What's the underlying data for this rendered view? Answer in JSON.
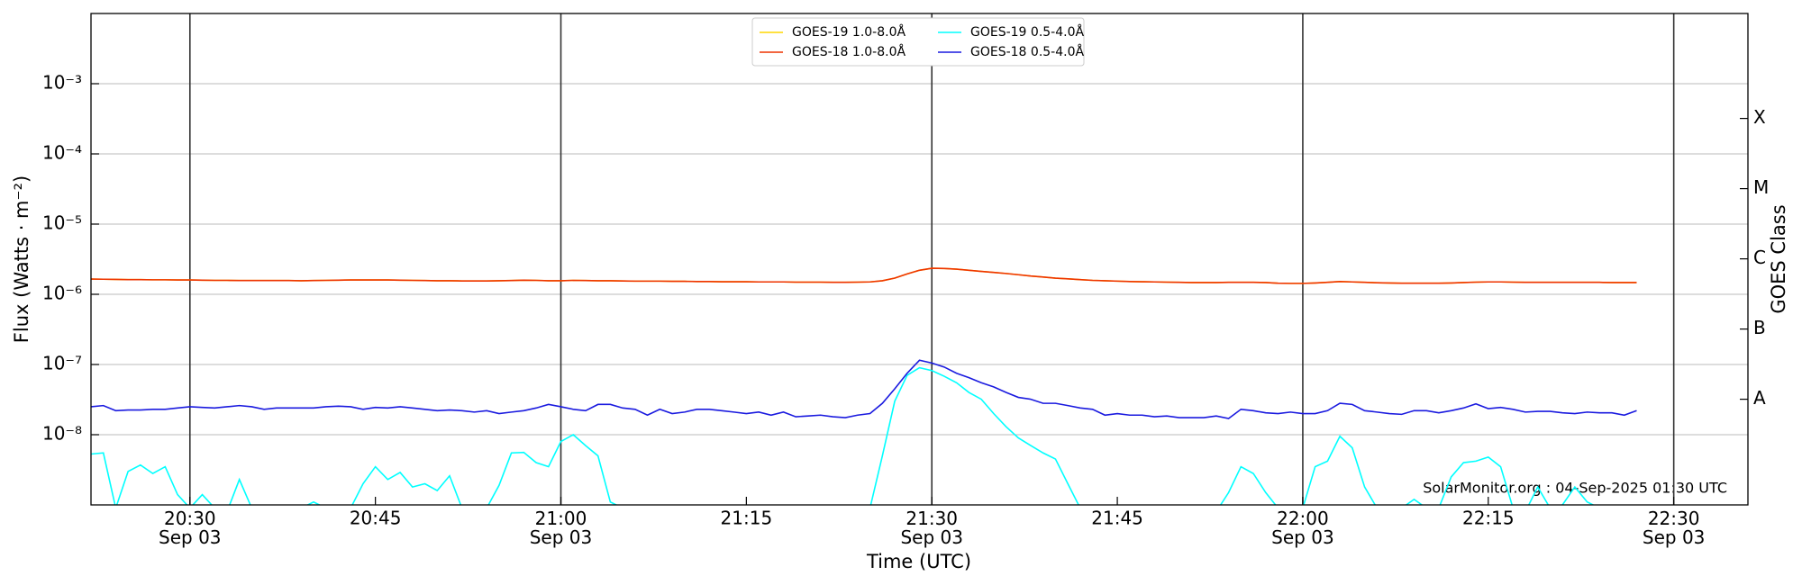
{
  "chart_data": {
    "type": "line",
    "x_label": "Time (UTC)",
    "y_label": "Flux (Watts · m⁻²)",
    "y2_label": "GOES Class",
    "annotation": "SolarMonitor.org : 04-Sep-2025 01:30 UTC",
    "log_scale": true,
    "grid": true,
    "legend_position": "top",
    "xlim": [
      "20:22",
      "22:36"
    ],
    "xticks": [
      {
        "value": "20:30",
        "label": "20:30\nSep 03"
      },
      "20:45",
      {
        "value": "21:00",
        "label": "21:00\nSep 03"
      },
      "21:15",
      {
        "value": "21:30",
        "label": "21:30\nSep 03"
      },
      "21:45",
      {
        "value": "22:00",
        "label": "22:00\nSep 03"
      },
      "22:15",
      {
        "value": "22:30",
        "label": "22:30\nSep 03"
      }
    ],
    "vlines": [
      "20:30",
      "21:00",
      "21:30",
      "22:00",
      "22:30"
    ],
    "ylim": [
      1e-09,
      0.01
    ],
    "yticks": [
      {
        "value": 1e-08,
        "label": "10⁻⁸"
      },
      {
        "value": 1e-07,
        "label": "10⁻⁷"
      },
      {
        "value": 1e-06,
        "label": "10⁻⁶"
      },
      {
        "value": 1e-05,
        "label": "10⁻⁵"
      },
      {
        "value": 0.0001,
        "label": "10⁻⁴"
      },
      {
        "value": 0.001,
        "label": "10⁻³"
      }
    ],
    "y2lim": [
      1e-09,
      0.01
    ],
    "y2ticks": [
      {
        "value": 3.2e-08,
        "label": "A"
      },
      {
        "value": 3.2e-07,
        "label": "B"
      },
      {
        "value": 3.2e-06,
        "label": "C"
      },
      {
        "value": 3.2e-05,
        "label": "M"
      },
      {
        "value": 0.00032,
        "label": "X"
      }
    ],
    "x": [
      "20:22",
      "20:23",
      "20:24",
      "20:25",
      "20:26",
      "20:27",
      "20:28",
      "20:29",
      "20:30",
      "20:31",
      "20:32",
      "20:33",
      "20:34",
      "20:35",
      "20:36",
      "20:37",
      "20:38",
      "20:39",
      "20:40",
      "20:41",
      "20:42",
      "20:43",
      "20:44",
      "20:45",
      "20:46",
      "20:47",
      "20:48",
      "20:49",
      "20:50",
      "20:51",
      "20:52",
      "20:53",
      "20:54",
      "20:55",
      "20:56",
      "20:57",
      "20:58",
      "20:59",
      "21:00",
      "21:01",
      "21:02",
      "21:03",
      "21:04",
      "21:05",
      "21:06",
      "21:07",
      "21:08",
      "21:09",
      "21:10",
      "21:11",
      "21:12",
      "21:13",
      "21:14",
      "21:15",
      "21:16",
      "21:17",
      "21:18",
      "21:19",
      "21:20",
      "21:21",
      "21:22",
      "21:23",
      "21:24",
      "21:25",
      "21:26",
      "21:27",
      "21:28",
      "21:29",
      "21:30",
      "21:31",
      "21:32",
      "21:33",
      "21:34",
      "21:35",
      "21:36",
      "21:37",
      "21:38",
      "21:39",
      "21:40",
      "21:41",
      "21:42",
      "21:43",
      "21:44",
      "21:45",
      "21:46",
      "21:47",
      "21:48",
      "21:49",
      "21:50",
      "21:51",
      "21:52",
      "21:53",
      "21:54",
      "21:55",
      "21:56",
      "21:57",
      "21:58",
      "21:59",
      "22:00",
      "22:01",
      "22:02",
      "22:03",
      "22:04",
      "22:05",
      "22:06",
      "22:07",
      "22:08",
      "22:09",
      "22:10",
      "22:11",
      "22:12",
      "22:13",
      "22:14",
      "22:15",
      "22:16",
      "22:17",
      "22:18",
      "22:19",
      "22:20",
      "22:21",
      "22:22",
      "22:23",
      "22:24",
      "22:25",
      "22:26",
      "22:27"
    ],
    "series": [
      {
        "name": "GOES-19 1.0-8.0Å",
        "color": "#ffd700",
        "values": [
          1.65e-06,
          1.64e-06,
          1.63e-06,
          1.62e-06,
          1.62e-06,
          1.61e-06,
          1.61e-06,
          1.6e-06,
          1.6e-06,
          1.59e-06,
          1.58e-06,
          1.58e-06,
          1.57e-06,
          1.57e-06,
          1.57e-06,
          1.57e-06,
          1.57e-06,
          1.56e-06,
          1.57e-06,
          1.58e-06,
          1.59e-06,
          1.6e-06,
          1.6e-06,
          1.6e-06,
          1.6e-06,
          1.59e-06,
          1.58e-06,
          1.57e-06,
          1.56e-06,
          1.56e-06,
          1.55e-06,
          1.55e-06,
          1.55e-06,
          1.56e-06,
          1.57e-06,
          1.59e-06,
          1.58e-06,
          1.56e-06,
          1.56e-06,
          1.58e-06,
          1.57e-06,
          1.56e-06,
          1.56e-06,
          1.55e-06,
          1.54e-06,
          1.54e-06,
          1.54e-06,
          1.53e-06,
          1.53e-06,
          1.52e-06,
          1.52e-06,
          1.51e-06,
          1.51e-06,
          1.51e-06,
          1.5e-06,
          1.5e-06,
          1.5e-06,
          1.49e-06,
          1.49e-06,
          1.49e-06,
          1.48e-06,
          1.48e-06,
          1.49e-06,
          1.5e-06,
          1.56e-06,
          1.7e-06,
          1.95e-06,
          2.2e-06,
          2.35e-06,
          2.33e-06,
          2.28e-06,
          2.2e-06,
          2.12e-06,
          2.05e-06,
          1.98e-06,
          1.9e-06,
          1.82e-06,
          1.76e-06,
          1.7e-06,
          1.66e-06,
          1.62e-06,
          1.58e-06,
          1.56e-06,
          1.54e-06,
          1.52e-06,
          1.51e-06,
          1.5e-06,
          1.49e-06,
          1.48e-06,
          1.47e-06,
          1.47e-06,
          1.47e-06,
          1.48e-06,
          1.48e-06,
          1.48e-06,
          1.47e-06,
          1.44e-06,
          1.43e-06,
          1.43e-06,
          1.45e-06,
          1.48e-06,
          1.52e-06,
          1.5e-06,
          1.48e-06,
          1.46e-06,
          1.45e-06,
          1.44e-06,
          1.44e-06,
          1.44e-06,
          1.44e-06,
          1.45e-06,
          1.47e-06,
          1.49e-06,
          1.5e-06,
          1.5e-06,
          1.49e-06,
          1.48e-06,
          1.48e-06,
          1.48e-06,
          1.48e-06,
          1.48e-06,
          1.48e-06,
          1.48e-06,
          1.47e-06,
          1.47e-06,
          1.47e-06
        ]
      },
      {
        "name": "GOES-18 1.0-8.0Å",
        "color": "#ee3300",
        "values": [
          1.65e-06,
          1.64e-06,
          1.63e-06,
          1.62e-06,
          1.62e-06,
          1.61e-06,
          1.61e-06,
          1.6e-06,
          1.6e-06,
          1.59e-06,
          1.58e-06,
          1.58e-06,
          1.57e-06,
          1.57e-06,
          1.57e-06,
          1.57e-06,
          1.57e-06,
          1.56e-06,
          1.57e-06,
          1.58e-06,
          1.59e-06,
          1.6e-06,
          1.6e-06,
          1.6e-06,
          1.6e-06,
          1.59e-06,
          1.58e-06,
          1.57e-06,
          1.56e-06,
          1.56e-06,
          1.55e-06,
          1.55e-06,
          1.55e-06,
          1.56e-06,
          1.57e-06,
          1.59e-06,
          1.58e-06,
          1.56e-06,
          1.56e-06,
          1.58e-06,
          1.57e-06,
          1.56e-06,
          1.56e-06,
          1.55e-06,
          1.54e-06,
          1.54e-06,
          1.54e-06,
          1.53e-06,
          1.53e-06,
          1.52e-06,
          1.52e-06,
          1.51e-06,
          1.51e-06,
          1.51e-06,
          1.5e-06,
          1.5e-06,
          1.5e-06,
          1.49e-06,
          1.49e-06,
          1.49e-06,
          1.48e-06,
          1.48e-06,
          1.49e-06,
          1.5e-06,
          1.56e-06,
          1.7e-06,
          1.95e-06,
          2.2e-06,
          2.35e-06,
          2.33e-06,
          2.28e-06,
          2.2e-06,
          2.12e-06,
          2.05e-06,
          1.98e-06,
          1.9e-06,
          1.82e-06,
          1.76e-06,
          1.7e-06,
          1.66e-06,
          1.62e-06,
          1.58e-06,
          1.56e-06,
          1.54e-06,
          1.52e-06,
          1.51e-06,
          1.5e-06,
          1.49e-06,
          1.48e-06,
          1.47e-06,
          1.47e-06,
          1.47e-06,
          1.48e-06,
          1.48e-06,
          1.48e-06,
          1.47e-06,
          1.44e-06,
          1.43e-06,
          1.43e-06,
          1.45e-06,
          1.48e-06,
          1.52e-06,
          1.5e-06,
          1.48e-06,
          1.46e-06,
          1.45e-06,
          1.44e-06,
          1.44e-06,
          1.44e-06,
          1.44e-06,
          1.45e-06,
          1.47e-06,
          1.49e-06,
          1.5e-06,
          1.5e-06,
          1.49e-06,
          1.48e-06,
          1.48e-06,
          1.48e-06,
          1.48e-06,
          1.48e-06,
          1.48e-06,
          1.48e-06,
          1.47e-06,
          1.47e-06,
          1.47e-06
        ]
      },
      {
        "name": "GOES-19 0.5-4.0Å",
        "color": "#00ffff",
        "values": [
          5.3e-09,
          5.5e-09,
          9e-10,
          3e-09,
          3.7e-09,
          2.8e-09,
          3.5e-09,
          1.4e-09,
          9e-10,
          1.4e-09,
          9e-10,
          8e-10,
          2.3e-09,
          9e-10,
          8e-10,
          8e-10,
          9e-10,
          9e-10,
          1.1e-09,
          9e-10,
          9e-10,
          9e-10,
          2e-09,
          3.5e-09,
          2.3e-09,
          2.9e-09,
          1.8e-09,
          2e-09,
          1.6e-09,
          2.6e-09,
          9e-10,
          8e-10,
          9e-10,
          1.9e-09,
          5.5e-09,
          5.6e-09,
          4e-09,
          3.5e-09,
          8e-09,
          1e-08,
          7e-09,
          5e-09,
          1.1e-09,
          9e-10,
          9e-10,
          8e-10,
          8e-10,
          8e-10,
          8e-10,
          8e-10,
          8e-10,
          8e-10,
          8e-10,
          8e-10,
          8e-10,
          8e-10,
          8e-10,
          8e-10,
          8e-10,
          8e-10,
          8e-10,
          8e-10,
          8e-10,
          9e-10,
          5e-09,
          3e-08,
          7e-08,
          9e-08,
          8.2e-08,
          6.8e-08,
          5.5e-08,
          4e-08,
          3.2e-08,
          2e-08,
          1.3e-08,
          9e-09,
          7e-09,
          5.5e-09,
          4.5e-09,
          2e-09,
          9e-10,
          8e-10,
          8e-10,
          8e-10,
          8e-10,
          8e-10,
          8e-10,
          8e-10,
          8e-10,
          8e-10,
          8e-10,
          8e-10,
          1.5e-09,
          3.5e-09,
          2.8e-09,
          1.5e-09,
          9e-10,
          8e-10,
          9e-10,
          3.5e-09,
          4.2e-09,
          9.5e-09,
          6.5e-09,
          1.8e-09,
          9e-10,
          8e-10,
          9e-10,
          1.2e-09,
          9e-10,
          9e-10,
          2.5e-09,
          4e-09,
          4.2e-09,
          4.8e-09,
          3.5e-09,
          9e-10,
          8e-10,
          1.8e-09,
          9e-10,
          1e-09,
          1.8e-09,
          1.1e-09,
          9e-10,
          8e-10,
          8e-10,
          8e-10
        ]
      },
      {
        "name": "GOES-18 0.5-4.0Å",
        "color": "#1a1adf",
        "values": [
          2.5e-08,
          2.6e-08,
          2.2e-08,
          2.25e-08,
          2.25e-08,
          2.3e-08,
          2.3e-08,
          2.4e-08,
          2.5e-08,
          2.45e-08,
          2.4e-08,
          2.5e-08,
          2.6e-08,
          2.5e-08,
          2.3e-08,
          2.4e-08,
          2.4e-08,
          2.4e-08,
          2.4e-08,
          2.5e-08,
          2.55e-08,
          2.5e-08,
          2.3e-08,
          2.45e-08,
          2.4e-08,
          2.5e-08,
          2.4e-08,
          2.3e-08,
          2.2e-08,
          2.25e-08,
          2.2e-08,
          2.1e-08,
          2.2e-08,
          2e-08,
          2.1e-08,
          2.2e-08,
          2.4e-08,
          2.7e-08,
          2.5e-08,
          2.3e-08,
          2.2e-08,
          2.7e-08,
          2.7e-08,
          2.4e-08,
          2.3e-08,
          1.9e-08,
          2.3e-08,
          2e-08,
          2.1e-08,
          2.3e-08,
          2.3e-08,
          2.2e-08,
          2.1e-08,
          2e-08,
          2.1e-08,
          1.9e-08,
          2.1e-08,
          1.8e-08,
          1.85e-08,
          1.9e-08,
          1.8e-08,
          1.75e-08,
          1.9e-08,
          2e-08,
          2.8e-08,
          4.5e-08,
          7.5e-08,
          1.15e-07,
          1.05e-07,
          9.2e-08,
          7.5e-08,
          6.5e-08,
          5.5e-08,
          4.8e-08,
          4e-08,
          3.4e-08,
          3.2e-08,
          2.8e-08,
          2.8e-08,
          2.6e-08,
          2.4e-08,
          2.3e-08,
          1.9e-08,
          2e-08,
          1.9e-08,
          1.9e-08,
          1.8e-08,
          1.85e-08,
          1.75e-08,
          1.75e-08,
          1.75e-08,
          1.85e-08,
          1.7e-08,
          2.3e-08,
          2.2e-08,
          2.05e-08,
          2e-08,
          2.1e-08,
          2e-08,
          2e-08,
          2.2e-08,
          2.8e-08,
          2.7e-08,
          2.2e-08,
          2.1e-08,
          2e-08,
          1.95e-08,
          2.2e-08,
          2.2e-08,
          2.05e-08,
          2.2e-08,
          2.4e-08,
          2.75e-08,
          2.35e-08,
          2.45e-08,
          2.3e-08,
          2.1e-08,
          2.15e-08,
          2.15e-08,
          2.05e-08,
          2e-08,
          2.1e-08,
          2.05e-08,
          2.05e-08,
          1.9e-08,
          2.2e-08
        ]
      }
    ]
  }
}
